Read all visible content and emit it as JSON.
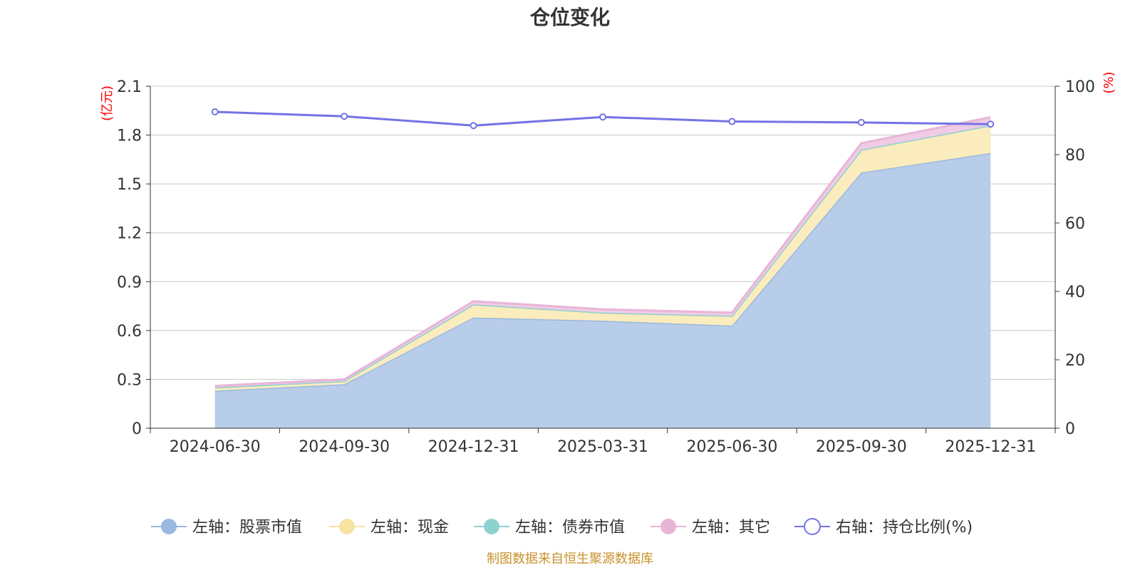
{
  "chart_data": {
    "type": "area",
    "title": "仓位变化",
    "categories": [
      "2024-06-30",
      "2024-09-30",
      "2024-12-31",
      "2025-03-31",
      "2025-06-30",
      "2025-09-30",
      "2025-12-31"
    ],
    "left_axis": {
      "unit": "(亿元)",
      "min": 0,
      "max": 2.1,
      "ticks": [
        "0",
        "0.3",
        "0.6",
        "0.9",
        "1.2",
        "1.5",
        "1.8",
        "2.1"
      ]
    },
    "right_axis": {
      "unit": "(%)",
      "min": 0,
      "max": 100,
      "ticks": [
        "0",
        "20",
        "40",
        "60",
        "80",
        "100"
      ]
    },
    "stacked": true,
    "grid": true,
    "legend_position": "bottom",
    "series": [
      {
        "name": "左轴：股票市值",
        "axis": "left",
        "color": "#9bb8e0",
        "fill": "#b8cdea",
        "values": [
          0.23,
          0.27,
          0.68,
          0.66,
          0.63,
          1.57,
          1.69
        ]
      },
      {
        "name": "左轴：现金",
        "axis": "left",
        "color": "#f5e3a0",
        "fill": "#faecbc",
        "values": [
          0.02,
          0.02,
          0.08,
          0.05,
          0.06,
          0.14,
          0.17
        ]
      },
      {
        "name": "左轴：债券市值",
        "axis": "left",
        "color": "#8ed1d1",
        "fill": "#b4e2e2",
        "values": [
          0,
          0,
          0,
          0,
          0,
          0,
          0
        ]
      },
      {
        "name": "左轴：其它",
        "axis": "left",
        "color": "#e8b5d8",
        "fill": "#efcce4",
        "values": [
          0.01,
          0.01,
          0.02,
          0.02,
          0.02,
          0.04,
          0.05
        ]
      },
      {
        "name": "右轴：持仓比例(%)",
        "axis": "right",
        "color": "#7373e6",
        "values": [
          92.5,
          91.2,
          88.5,
          91.0,
          89.7,
          89.4,
          88.9
        ]
      }
    ]
  },
  "footer": {
    "source": "制图数据来自恒生聚源数据库"
  }
}
